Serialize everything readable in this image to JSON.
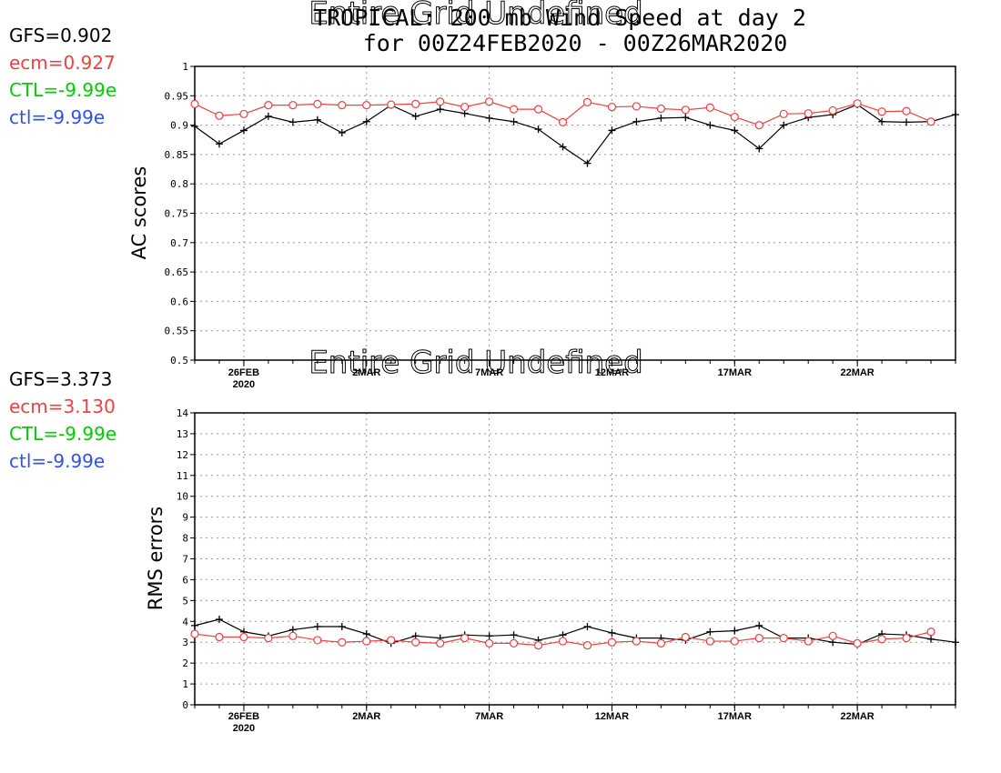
{
  "title": {
    "line1": "TROPICAL: 200 mb Wind Speed at day 2",
    "line2": "for 00Z24FEB2020 - 00Z26MAR2020",
    "overlay": "Entire Grid Undefined"
  },
  "colors": {
    "gfs": "#000000",
    "ecm": "#f04040",
    "CTL": "#00cc00",
    "ctl": "#3050f0"
  },
  "chart_data": [
    {
      "type": "line",
      "ylabel": "AC scores",
      "ylim": [
        0.5,
        1
      ],
      "yticks": [
        "0.5",
        "0.55",
        "0.6",
        "0.65",
        "0.7",
        "0.75",
        "0.8",
        "0.85",
        "0.9",
        "0.95",
        "1"
      ],
      "xticks": [
        {
          "label": "26FEB",
          "sub": "2020",
          "day": 2
        },
        {
          "label": "2MAR",
          "sub": "",
          "day": 7
        },
        {
          "label": "7MAR",
          "sub": "",
          "day": 12
        },
        {
          "label": "12MAR",
          "sub": "",
          "day": 17
        },
        {
          "label": "17MAR",
          "sub": "",
          "day": 22
        },
        {
          "label": "22MAR",
          "sub": "",
          "day": 27
        }
      ],
      "x_start": "24FEB2020",
      "x_end": "26MAR2020",
      "grid": true,
      "overlay_text": "Entire Grid Undefined",
      "legend": [
        {
          "label": "GFS=0.902",
          "color": "#000000"
        },
        {
          "label": "ecm=0.927",
          "color": "#f04040"
        },
        {
          "label": "CTL=-9.99e",
          "color": "#00cc00"
        },
        {
          "label": "ctl=-9.99e",
          "color": "#3050f0"
        }
      ],
      "series": [
        {
          "name": "GFS",
          "color": "#000000",
          "marker": "plus",
          "values": [
            0.898,
            0.868,
            0.891,
            0.915,
            0.905,
            0.909,
            0.887,
            0.906,
            0.934,
            0.915,
            0.927,
            0.92,
            0.912,
            0.906,
            0.893,
            0.863,
            0.835,
            0.891,
            0.906,
            0.912,
            0.913,
            0.9,
            0.891,
            0.86,
            0.9,
            0.913,
            0.918,
            0.935,
            0.906,
            0.905,
            0.906,
            0.918
          ]
        },
        {
          "name": "ecm",
          "color": "#f04040",
          "marker": "circle",
          "values": [
            0.936,
            0.916,
            0.919,
            0.934,
            0.934,
            0.936,
            0.934,
            0.934,
            0.935,
            0.936,
            0.94,
            0.931,
            0.94,
            0.927,
            0.927,
            0.905,
            0.939,
            0.931,
            0.932,
            0.928,
            0.926,
            0.93,
            0.914,
            0.9,
            0.919,
            0.92,
            0.925,
            0.937,
            0.923,
            0.924,
            0.906,
            null
          ]
        }
      ]
    },
    {
      "type": "line",
      "ylabel": "RMS errors",
      "ylim": [
        0,
        14
      ],
      "yticks": [
        "0",
        "1",
        "2",
        "3",
        "4",
        "5",
        "6",
        "7",
        "8",
        "9",
        "10",
        "11",
        "12",
        "13",
        "14"
      ],
      "xticks": [
        {
          "label": "26FEB",
          "sub": "2020",
          "day": 2
        },
        {
          "label": "2MAR",
          "sub": "",
          "day": 7
        },
        {
          "label": "7MAR",
          "sub": "",
          "day": 12
        },
        {
          "label": "12MAR",
          "sub": "",
          "day": 17
        },
        {
          "label": "17MAR",
          "sub": "",
          "day": 22
        },
        {
          "label": "22MAR",
          "sub": "",
          "day": 27
        }
      ],
      "x_start": "24FEB2020",
      "x_end": "26MAR2020",
      "grid": true,
      "legend": [
        {
          "label": "GFS=3.373",
          "color": "#000000"
        },
        {
          "label": "ecm=3.130",
          "color": "#f04040"
        },
        {
          "label": "CTL=-9.99e",
          "color": "#00cc00"
        },
        {
          "label": "ctl=-9.99e",
          "color": "#3050f0"
        }
      ],
      "series": [
        {
          "name": "GFS",
          "color": "#000000",
          "marker": "plus",
          "values": [
            3.8,
            4.1,
            3.5,
            3.3,
            3.6,
            3.75,
            3.75,
            3.4,
            2.95,
            3.3,
            3.2,
            3.35,
            3.3,
            3.35,
            3.1,
            3.35,
            3.75,
            3.45,
            3.2,
            3.2,
            3.1,
            3.5,
            3.55,
            3.8,
            3.2,
            3.2,
            3.0,
            2.9,
            3.4,
            3.35,
            3.15,
            3.0
          ]
        },
        {
          "name": "ecm",
          "color": "#f04040",
          "marker": "circle",
          "values": [
            3.4,
            3.25,
            3.25,
            3.2,
            3.3,
            3.1,
            3.0,
            3.05,
            3.1,
            3.0,
            2.95,
            3.2,
            2.95,
            2.95,
            2.85,
            3.05,
            2.85,
            3.0,
            3.05,
            2.95,
            3.25,
            3.05,
            3.05,
            3.2,
            3.2,
            3.05,
            3.3,
            2.95,
            3.15,
            3.2,
            3.5,
            null
          ]
        }
      ]
    }
  ]
}
